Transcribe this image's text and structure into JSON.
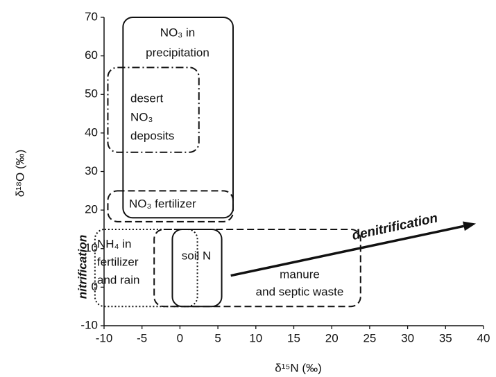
{
  "chart_data": {
    "type": "region",
    "x_label": "δ¹⁵N (‰)",
    "y_label": "δ¹⁸O (‰)",
    "xlim": [
      -10,
      40
    ],
    "ylim": [
      -10,
      70
    ],
    "xticks": [
      -10,
      -5,
      0,
      5,
      10,
      15,
      20,
      25,
      30,
      35,
      40
    ],
    "yticks": [
      -10,
      0,
      10,
      20,
      30,
      40,
      50,
      60,
      70
    ],
    "regions": [
      {
        "label": [
          "NO₃ in",
          "precipitation"
        ],
        "x": [
          -7.5,
          7
        ],
        "y": [
          18,
          70
        ],
        "style": "solid"
      },
      {
        "label": [
          "desert",
          "NO₃",
          "deposits"
        ],
        "x": [
          -9.5,
          2.5
        ],
        "y": [
          35,
          57
        ],
        "style": "dash-dot"
      },
      {
        "label": [
          "NO₃ fertilizer"
        ],
        "x": [
          -9.5,
          7
        ],
        "y": [
          17,
          25
        ],
        "style": "dashed"
      },
      {
        "label": [
          "NH₄ in",
          "fertilizer",
          "and rain"
        ],
        "x": [
          -11.2,
          2.3
        ],
        "y": [
          -5,
          15
        ],
        "style": "dotted"
      },
      {
        "label": [
          "manure",
          "and septic waste"
        ],
        "x": [
          -3.4,
          23.8
        ],
        "y": [
          -5,
          15
        ],
        "style": "dashed"
      },
      {
        "label": [
          "soil N"
        ],
        "x": [
          -1,
          5.5
        ],
        "y": [
          -5,
          15
        ],
        "style": "solid"
      }
    ],
    "arrow": {
      "label": "denitrification",
      "x": [
        6.7,
        39
      ],
      "y": [
        3,
        16.5
      ]
    },
    "side_label": "nitrification"
  }
}
